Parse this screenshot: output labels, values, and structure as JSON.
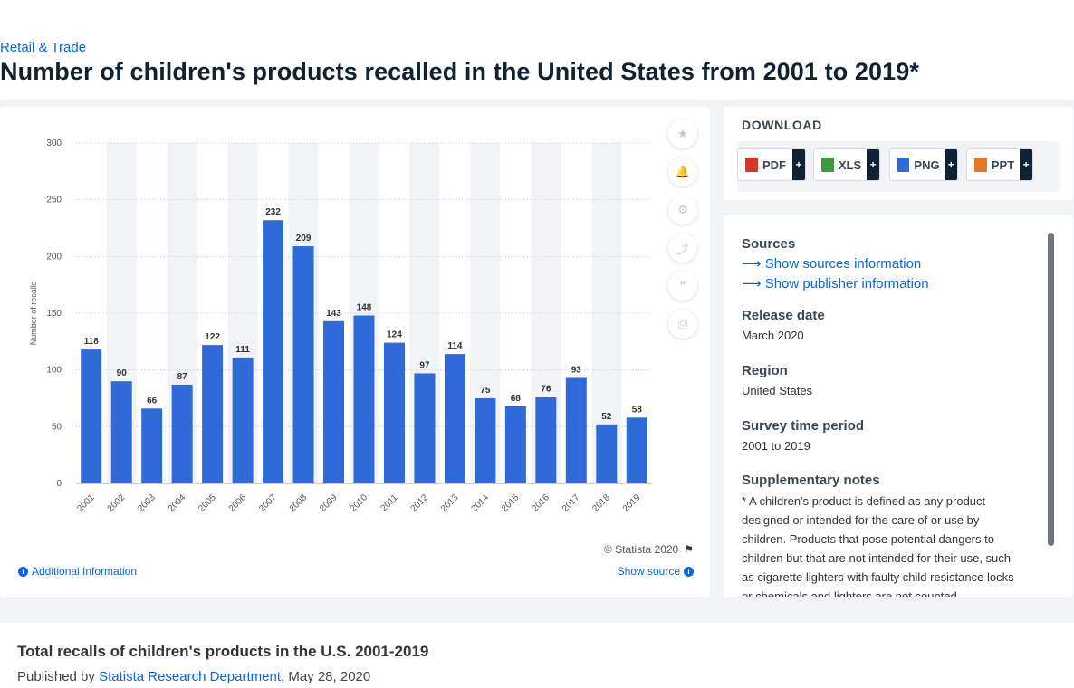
{
  "breadcrumb": "Retail & Trade",
  "title": "Number of children's products recalled in the United States from 2001 to 2019*",
  "chart_data": {
    "type": "bar",
    "title": "",
    "xlabel": "",
    "ylabel": "Number of recalls",
    "ylim": [
      0,
      300
    ],
    "yticks": [
      0,
      50,
      100,
      150,
      200,
      250,
      300
    ],
    "categories": [
      "2001",
      "2002",
      "2003",
      "2004",
      "2005",
      "2006",
      "2007",
      "2008",
      "2009",
      "2010",
      "2011",
      "2012",
      "2013",
      "2014",
      "2015",
      "2016",
      "2017",
      "2018",
      "2019"
    ],
    "values": [
      118,
      90,
      66,
      87,
      122,
      111,
      232,
      209,
      143,
      148,
      124,
      97,
      114,
      75,
      68,
      76,
      93,
      52,
      58
    ],
    "bar_color": "#2f6ad9",
    "band_color": "#f1f3f6",
    "grid": "dotted-horizontal",
    "legend": "none"
  },
  "tools": [
    {
      "icon": "star-icon",
      "glyph": "★"
    },
    {
      "icon": "bell-icon",
      "glyph": "🔔"
    },
    {
      "icon": "gear-icon",
      "glyph": "⚙"
    },
    {
      "icon": "share-icon",
      "glyph": "⤴"
    },
    {
      "icon": "quote-icon",
      "glyph": "❞"
    },
    {
      "icon": "print-icon",
      "glyph": "⎙"
    }
  ],
  "copyright": "© Statista 2020",
  "additional_info": "Additional Information",
  "show_source": "Show source",
  "download": {
    "title": "DOWNLOAD",
    "buttons": [
      {
        "label": "PDF",
        "color": "#d9362b"
      },
      {
        "label": "XLS",
        "color": "#3a9a3c"
      },
      {
        "label": "PNG",
        "color": "#2f6ad9"
      },
      {
        "label": "PPT",
        "color": "#e5762a"
      }
    ],
    "plus": "+"
  },
  "info": {
    "sources_h": "Sources",
    "sources_link": "Show sources information",
    "publisher_link": "Show publisher information",
    "release_h": "Release date",
    "release_v": "March 2020",
    "region_h": "Region",
    "region_v": "United States",
    "survey_h": "Survey time period",
    "survey_v": "2001 to 2019",
    "notes_h": "Supplementary notes",
    "notes_v": "* A children's product is defined as any product designed or intended for the care of or use by children. Products that pose potential dangers to children but that are not intended for their use, such as cigarette lighters with faulty child resistance locks or chemicals and lighters are not counted."
  },
  "related": {
    "title": "Total recalls of children's products in the U.S. 2001-2019",
    "published_prefix": "Published by ",
    "publisher": "Statista Research Department",
    "date": ", May 28, 2020"
  },
  "colors": {
    "accent": "#0666e5",
    "bar": "#2f6ad9",
    "dark": "#0f2133"
  }
}
